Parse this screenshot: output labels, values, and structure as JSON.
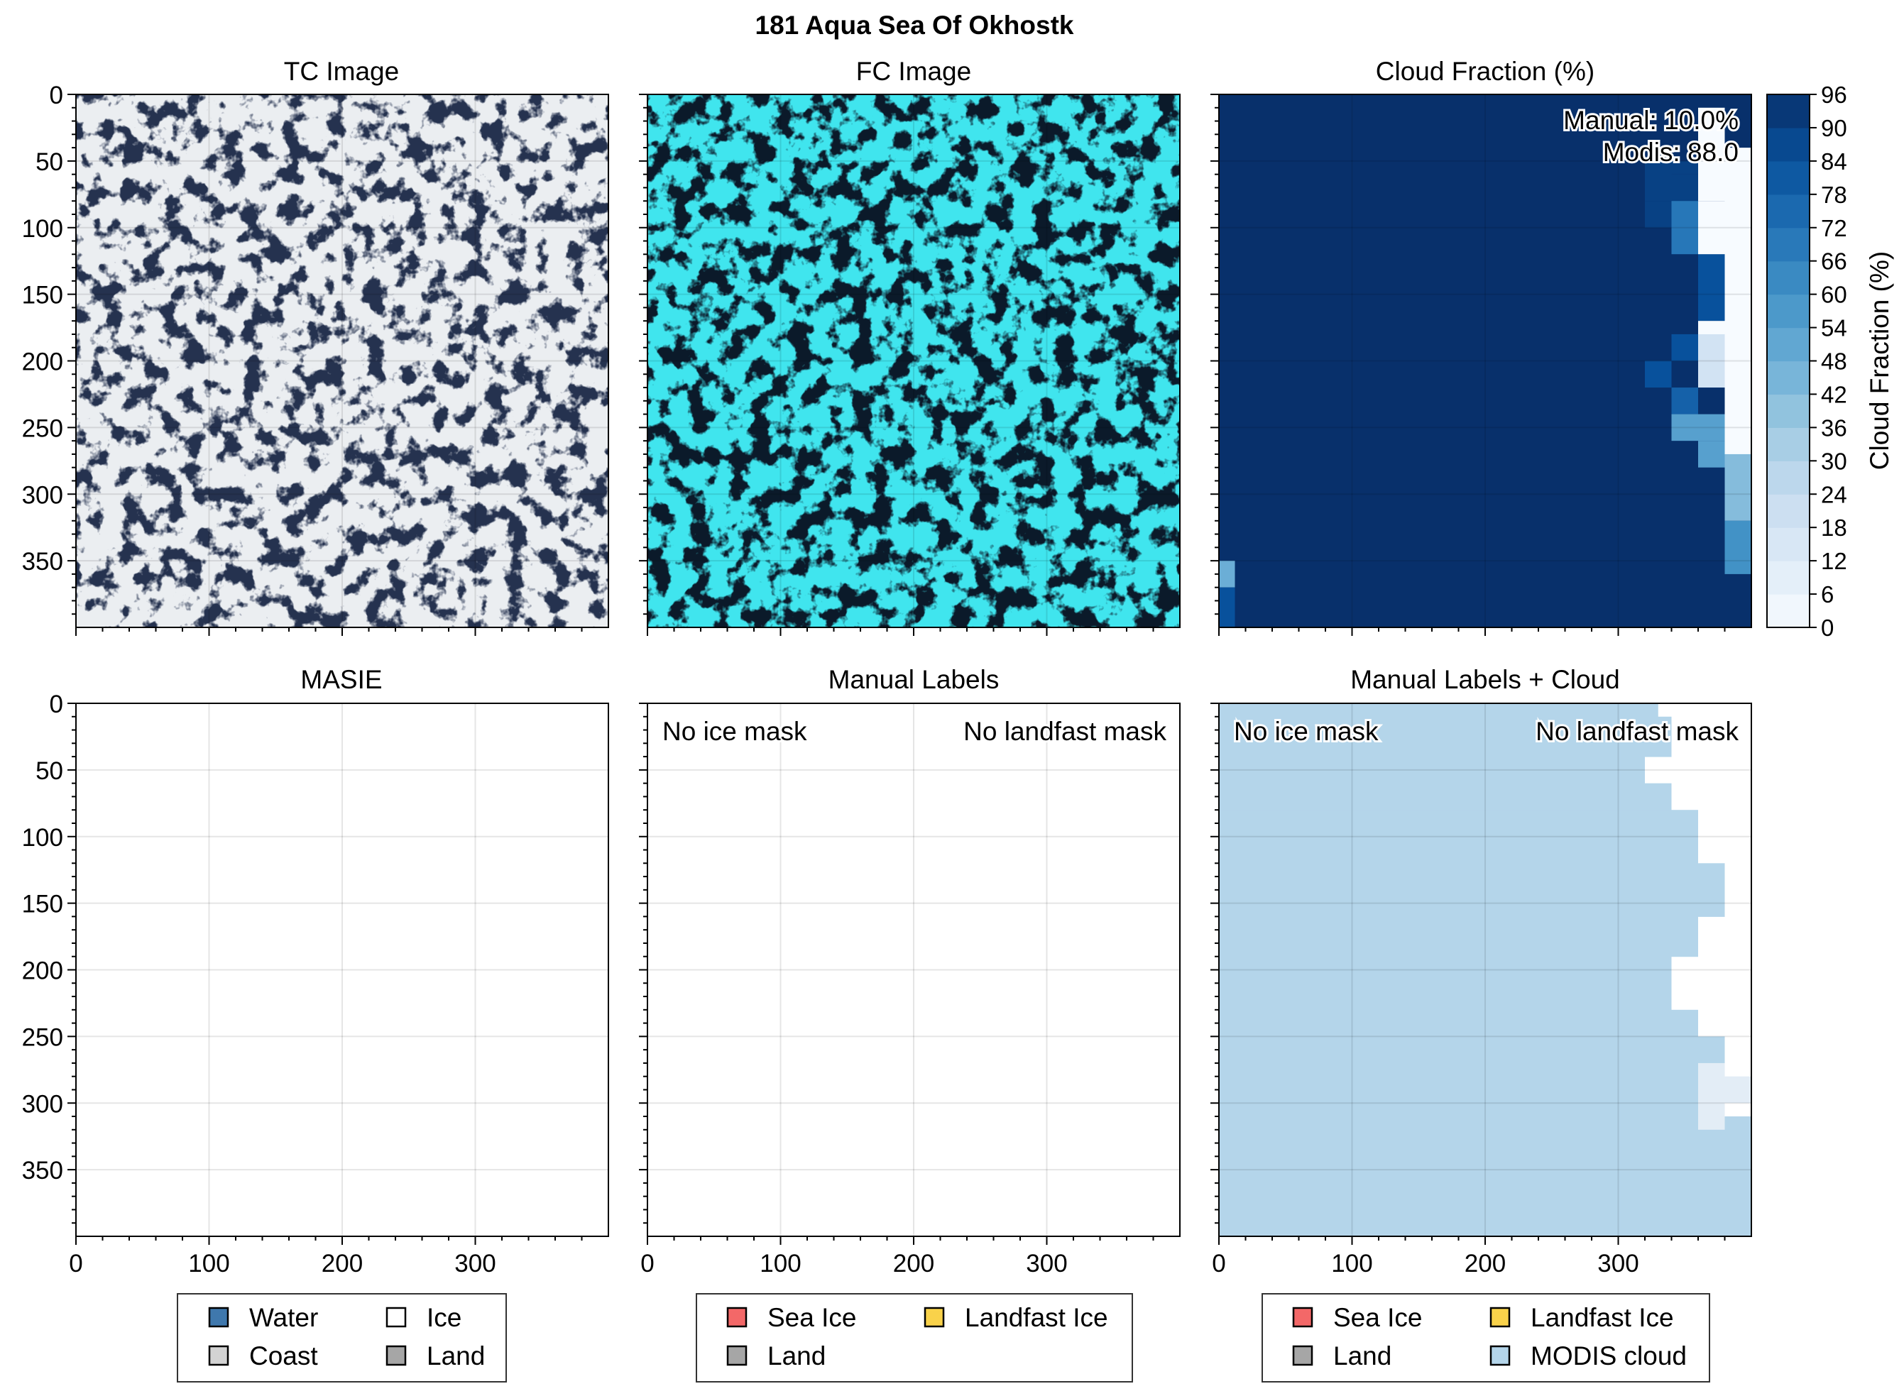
{
  "figure": {
    "title": "181 Aqua Sea Of Okhostk"
  },
  "chart_data": [
    {
      "type": "image",
      "title": "TC Image",
      "xlim": [
        0,
        400
      ],
      "ylim": [
        400,
        0
      ],
      "yticks": [
        0,
        50,
        100,
        150,
        200,
        250,
        300,
        350
      ]
    },
    {
      "type": "image",
      "title": "FC Image",
      "xlim": [
        0,
        400
      ],
      "ylim": [
        400,
        0
      ]
    },
    {
      "type": "heatmap",
      "title": "Cloud Fraction (%)",
      "xlim": [
        0,
        400
      ],
      "ylim": [
        400,
        0
      ],
      "annotations": [
        "Manual: 10.0%",
        "Modis: 88.0"
      ],
      "colorbar": {
        "label": "Cloud Fraction (%)",
        "ticks": [
          "0",
          "6",
          "12",
          "18",
          "24",
          "30",
          "36",
          "42",
          "48",
          "54",
          "60",
          "66",
          "72",
          "78",
          "84",
          "90",
          "96"
        ],
        "range": [
          0,
          96
        ]
      },
      "cells": [
        {
          "x": [
            320,
            340
          ],
          "y": [
            50,
            80
          ],
          "value": 90
        },
        {
          "x": [
            340,
            360
          ],
          "y": [
            50,
            60
          ],
          "value": 90
        },
        {
          "x": [
            340,
            360
          ],
          "y": [
            60,
            80
          ],
          "value": 90
        },
        {
          "x": [
            320,
            340
          ],
          "y": [
            80,
            100
          ],
          "value": 90
        },
        {
          "x": [
            340,
            360
          ],
          "y": [
            80,
            120
          ],
          "value": 70
        },
        {
          "x": [
            360,
            380
          ],
          "y": [
            80,
            120
          ],
          "value": 0
        },
        {
          "x": [
            340,
            360
          ],
          "y": [
            120,
            150
          ],
          "value": 96
        },
        {
          "x": [
            360,
            380
          ],
          "y": [
            120,
            170
          ],
          "value": 84
        },
        {
          "x": [
            380,
            400
          ],
          "y": [
            40,
            300
          ],
          "value": 0
        },
        {
          "x": [
            360,
            380
          ],
          "y": [
            170,
            190
          ],
          "value": 0
        },
        {
          "x": [
            360,
            380
          ],
          "y": [
            10,
            80
          ],
          "value": 0
        },
        {
          "x": [
            340,
            360
          ],
          "y": [
            180,
            200
          ],
          "value": 84
        },
        {
          "x": [
            320,
            340
          ],
          "y": [
            200,
            220
          ],
          "value": 84
        },
        {
          "x": [
            340,
            360
          ],
          "y": [
            220,
            240
          ],
          "value": 78
        },
        {
          "x": [
            360,
            380
          ],
          "y": [
            180,
            220
          ],
          "value": 18
        },
        {
          "x": [
            340,
            360
          ],
          "y": [
            240,
            260
          ],
          "value": 54
        },
        {
          "x": [
            360,
            380
          ],
          "y": [
            240,
            260
          ],
          "value": 54
        },
        {
          "x": [
            360,
            380
          ],
          "y": [
            260,
            280
          ],
          "value": 54
        },
        {
          "x": [
            380,
            400
          ],
          "y": [
            270,
            310
          ],
          "value": 42
        },
        {
          "x": [
            380,
            400
          ],
          "y": [
            300,
            320
          ],
          "value": 42
        },
        {
          "x": [
            380,
            400
          ],
          "y": [
            320,
            360
          ],
          "value": 60
        },
        {
          "x": [
            0,
            12
          ],
          "y": [
            350,
            370
          ],
          "value": 48
        },
        {
          "x": [
            0,
            12
          ],
          "y": [
            370,
            400
          ],
          "value": 84
        }
      ]
    },
    {
      "type": "categorical-map",
      "title": "MASIE",
      "xlim": [
        0,
        400
      ],
      "ylim": [
        400,
        0
      ],
      "xticks": [
        0,
        100,
        200,
        300
      ],
      "legend": [
        {
          "label": "Water",
          "color": "#3f78ad"
        },
        {
          "label": "Ice",
          "color": "#ffffff"
        },
        {
          "label": "Coast",
          "color": "#d3d3d3"
        },
        {
          "label": "Land",
          "color": "#a6a6a6"
        }
      ]
    },
    {
      "type": "categorical-map",
      "title": "Manual Labels",
      "xlim": [
        0,
        400
      ],
      "ylim": [
        400,
        0
      ],
      "annotations": [
        "No ice mask",
        "No landfast mask"
      ],
      "legend": [
        {
          "label": "Sea Ice",
          "color": "#f36868"
        },
        {
          "label": "Landfast Ice",
          "color": "#f9d24a"
        },
        {
          "label": "Land",
          "color": "#a6a6a6"
        }
      ]
    },
    {
      "type": "categorical-map",
      "title": "Manual Labels + Cloud",
      "xlim": [
        0,
        400
      ],
      "ylim": [
        400,
        0
      ],
      "annotations": [
        "No ice mask",
        "No landfast mask"
      ],
      "legend": [
        {
          "label": "Sea Ice",
          "color": "#f36868"
        },
        {
          "label": "Landfast Ice",
          "color": "#f9d24a"
        },
        {
          "label": "Land",
          "color": "#a6a6a6"
        },
        {
          "label": "MODIS cloud",
          "color": "#b4d5ea"
        }
      ],
      "cloud_profile": [
        {
          "y": [
            0,
            10
          ],
          "x_end": 330
        },
        {
          "y": [
            10,
            40
          ],
          "x_end": 340
        },
        {
          "y": [
            40,
            60
          ],
          "x_end": 320
        },
        {
          "y": [
            60,
            80
          ],
          "x_end": 340
        },
        {
          "y": [
            80,
            120
          ],
          "x_end": 360
        },
        {
          "y": [
            120,
            160
          ],
          "x_end": 380
        },
        {
          "y": [
            160,
            190
          ],
          "x_end": 360
        },
        {
          "y": [
            190,
            230
          ],
          "x_end": 340
        },
        {
          "y": [
            230,
            250
          ],
          "x_end": 360
        },
        {
          "y": [
            250,
            270
          ],
          "x_end": 380
        },
        {
          "y": [
            270,
            290
          ],
          "x_end": 360
        },
        {
          "y": [
            290,
            310
          ],
          "x_end": 360
        },
        {
          "y": [
            310,
            400
          ],
          "x_end": 400
        }
      ],
      "light_patches": [
        {
          "x": [
            360,
            380
          ],
          "y": [
            270,
            300
          ]
        },
        {
          "x": [
            380,
            400
          ],
          "y": [
            280,
            300
          ]
        },
        {
          "x": [
            360,
            380
          ],
          "y": [
            300,
            320
          ]
        }
      ]
    }
  ]
}
